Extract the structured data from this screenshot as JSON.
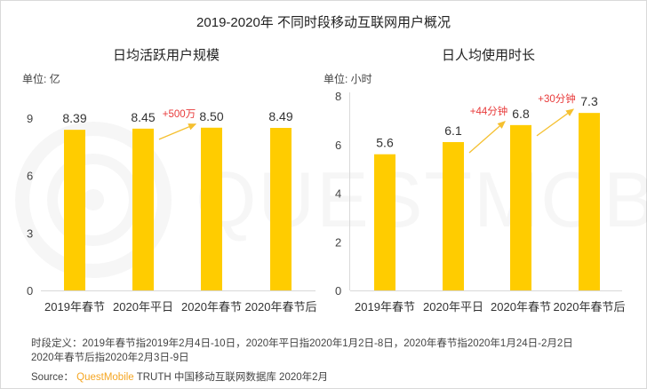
{
  "title": "2019-2020年 不同时段移动互联网用户概况",
  "colors": {
    "bar": "#FFCC00",
    "arrow": "#F5C030",
    "annotation": "#E83A3A",
    "axis": "#D9D9D9",
    "brand": "#F5A623"
  },
  "chart_data": [
    {
      "type": "bar",
      "title": "日均活跃用户规模",
      "unit_label": "单位: 亿",
      "categories": [
        "2019年春节",
        "2020年平日",
        "2020年春节",
        "2020年春节后"
      ],
      "values": [
        8.39,
        8.45,
        8.5,
        8.49
      ],
      "value_labels": [
        "8.39",
        "8.45",
        "8.50",
        "8.49"
      ],
      "ylim": [
        0,
        9
      ],
      "yticks": [
        0,
        3,
        6,
        9
      ],
      "ytick_labels": [
        "0",
        "3",
        "6",
        "9"
      ],
      "annotations": [
        {
          "from": 1,
          "to": 2,
          "text": "+500万"
        }
      ]
    },
    {
      "type": "bar",
      "title": "日人均使用时长",
      "unit_label": "单位: 小时",
      "categories": [
        "2019年春节",
        "2020年平日",
        "2020年春节",
        "2020年春节后"
      ],
      "values": [
        5.6,
        6.1,
        6.8,
        7.3
      ],
      "value_labels": [
        "5.6",
        "6.1",
        "6.8",
        "7.3"
      ],
      "ylim": [
        0,
        8
      ],
      "yticks": [
        0,
        2,
        4,
        6,
        8
      ],
      "ytick_labels": [
        "0",
        "2",
        "4",
        "6",
        "8"
      ],
      "annotations": [
        {
          "from": 1,
          "to": 2,
          "text": "+44分钟"
        },
        {
          "from": 2,
          "to": 3,
          "text": "+30分钟"
        }
      ]
    }
  ],
  "footer": {
    "definition_line1": "时段定义：2019年春节指2019年2月4日-10日，2020年平日指2020年1月2日-8日，2020年春节指2020年1月24日-2月2日",
    "definition_line2": "2020年春节后指2020年2月3日-9日",
    "source_label": "Source：",
    "source_brand": "QuestMobile",
    "source_rest": "TRUTH 中国移动互联网数据库 2020年2月"
  },
  "watermark": "QUESTMOBILE"
}
